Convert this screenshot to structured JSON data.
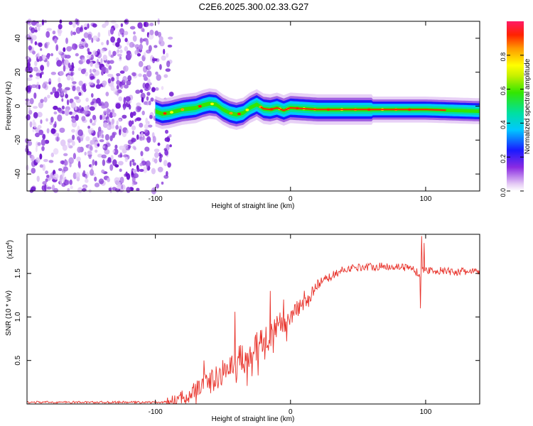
{
  "title": "C2E6.2025.300.02.33.G27",
  "chart_data": [
    {
      "type": "heatmap",
      "name": "spectrogram",
      "xlabel": "Height of straight line (km)",
      "ylabel": "Frequency (Hz)",
      "xlim": [
        -195,
        140
      ],
      "ylim": [
        -50,
        50
      ],
      "xticks": [
        -100,
        0,
        100
      ],
      "xtick_labels": [
        "-100",
        "0",
        "100"
      ],
      "yticks": [
        -40,
        -20,
        0,
        20,
        40
      ],
      "ytick_labels": [
        "-40",
        "-20",
        "0",
        "20",
        "40"
      ],
      "noise_region_x": [
        -195,
        -92
      ],
      "ridge": {
        "x": [
          -100,
          -95,
          -90,
          -85,
          -80,
          -75,
          -70,
          -65,
          -60,
          -55,
          -50,
          -45,
          -40,
          -35,
          -30,
          -25,
          -20,
          -15,
          -10,
          -5,
          0,
          10,
          20,
          40,
          60,
          80,
          100,
          120,
          140
        ],
        "frequency": [
          -3,
          -4.5,
          -4,
          -3,
          -2,
          -1.5,
          -1,
          0.5,
          1.5,
          1,
          -2,
          -4,
          -5,
          -4,
          -1,
          1,
          -1.5,
          -2,
          -1,
          -2.5,
          -1,
          -1.5,
          -2,
          -2,
          -2,
          -2,
          -2,
          -2.5,
          -3
        ]
      },
      "colorbar": {
        "label": "Normalized spectral amplitude",
        "ticks": [
          0.0,
          0.2,
          0.4,
          0.6,
          0.8
        ],
        "tick_labels": [
          "0.0",
          "0.2",
          "0.4",
          "0.6",
          "0.8"
        ],
        "range": [
          0,
          1
        ]
      }
    },
    {
      "type": "line",
      "name": "snr",
      "xlabel": "Height of straight line (km)",
      "ylabel": "SNR (10 * v/v)",
      "multiplier_label": "(x10",
      "multiplier_exponent": "4",
      "multiplier_close": ")",
      "xlim": [
        -195,
        140
      ],
      "ylim": [
        0,
        1.95
      ],
      "xticks": [
        -100,
        0,
        100
      ],
      "xtick_labels": [
        "-100",
        "0",
        "100"
      ],
      "yticks": [
        0.5,
        1.0,
        1.5
      ],
      "ytick_labels": [
        "0.5",
        "1.0",
        "1.5"
      ],
      "color": "#e8332b",
      "envelope": {
        "x": [
          -195,
          -100,
          -90,
          -80,
          -70,
          -60,
          -50,
          -40,
          -30,
          -20,
          -10,
          0,
          10,
          20,
          30,
          40,
          50,
          60,
          70,
          80,
          90,
          95,
          100,
          110,
          120,
          140
        ],
        "y": [
          0.02,
          0.02,
          0.02,
          0.07,
          0.17,
          0.25,
          0.35,
          0.48,
          0.6,
          0.72,
          0.87,
          1.03,
          1.2,
          1.35,
          1.47,
          1.55,
          1.57,
          1.58,
          1.58,
          1.58,
          1.56,
          1.5,
          1.54,
          1.53,
          1.52,
          1.52
        ]
      },
      "spikes": [
        {
          "x": 97,
          "y": 1.93
        },
        {
          "x": 96,
          "y": 1.1
        },
        {
          "x": 99,
          "y": 1.85
        },
        {
          "x": -41,
          "y": 1.06
        },
        {
          "x": -15,
          "y": 1.3
        },
        {
          "x": -5,
          "y": 1.2
        },
        {
          "x": -64,
          "y": 0.5
        }
      ]
    }
  ]
}
